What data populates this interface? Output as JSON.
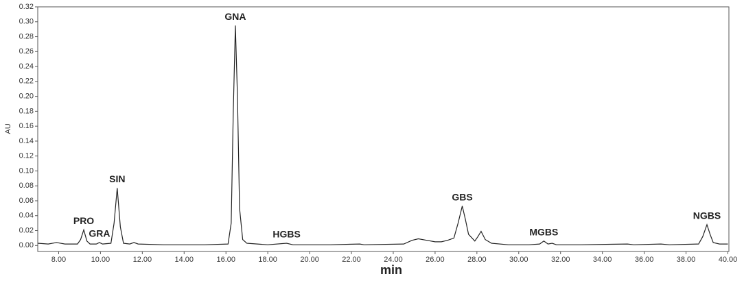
{
  "chart_data": {
    "type": "line",
    "x_label": "min",
    "y_label": "AU",
    "color": "#222222",
    "xlim": [
      7.0,
      40.05
    ],
    "ylim": [
      -0.008,
      0.32
    ],
    "xticks": [
      {
        "value": 8,
        "label": "8.00"
      },
      {
        "value": 10,
        "label": "10.00"
      },
      {
        "value": 12,
        "label": "12.00"
      },
      {
        "value": 14,
        "label": "14.00"
      },
      {
        "value": 16,
        "label": "16.00"
      },
      {
        "value": 18,
        "label": "18.00"
      },
      {
        "value": 20,
        "label": "20.00"
      },
      {
        "value": 22,
        "label": "22.00"
      },
      {
        "value": 24,
        "label": "24.00"
      },
      {
        "value": 26,
        "label": "26.00"
      },
      {
        "value": 28,
        "label": "28.00"
      },
      {
        "value": 30,
        "label": "30.00"
      },
      {
        "value": 32,
        "label": "32.00"
      },
      {
        "value": 34,
        "label": "34.00"
      },
      {
        "value": 36,
        "label": "36.00"
      },
      {
        "value": 38,
        "label": "38.00"
      },
      {
        "value": 40,
        "label": "40.00"
      }
    ],
    "yticks": [
      {
        "value": 0,
        "label": "0.00"
      },
      {
        "value": 0.02,
        "label": "0.02"
      },
      {
        "value": 0.04,
        "label": "0.04"
      },
      {
        "value": 0.06,
        "label": "0.06"
      },
      {
        "value": 0.08,
        "label": "0.08"
      },
      {
        "value": 0.1,
        "label": "0.10"
      },
      {
        "value": 0.12,
        "label": "0.12"
      },
      {
        "value": 0.14,
        "label": "0.14"
      },
      {
        "value": 0.16,
        "label": "0.16"
      },
      {
        "value": 0.18,
        "label": "0.18"
      },
      {
        "value": 0.2,
        "label": "0.20"
      },
      {
        "value": 0.22,
        "label": "0.22"
      },
      {
        "value": 0.24,
        "label": "0.24"
      },
      {
        "value": 0.26,
        "label": "0.26"
      },
      {
        "value": 0.28,
        "label": "0.28"
      },
      {
        "value": 0.3,
        "label": "0.30"
      },
      {
        "value": 0.32,
        "label": "0.32"
      }
    ],
    "x": [
      7.0,
      7.5,
      7.9,
      8.3,
      8.9,
      9.05,
      9.2,
      9.35,
      9.5,
      9.8,
      9.95,
      10.1,
      10.5,
      10.65,
      10.8,
      10.95,
      11.1,
      11.4,
      11.6,
      11.8,
      13,
      15,
      16.1,
      16.25,
      16.35,
      16.45,
      16.55,
      16.65,
      16.8,
      17.0,
      18,
      18.9,
      19.2,
      21,
      22.4,
      22.6,
      24.5,
      24.9,
      25.2,
      25.6,
      26.0,
      26.3,
      26.6,
      26.9,
      27.1,
      27.3,
      27.45,
      27.6,
      27.9,
      28.05,
      28.2,
      28.4,
      28.7,
      29.5,
      30.5,
      31.0,
      31.2,
      31.4,
      31.6,
      31.8,
      33,
      35.2,
      35.5,
      36.8,
      37.2,
      38.6,
      38.8,
      39.0,
      39.15,
      39.3,
      39.6,
      40.0
    ],
    "values": [
      0.003,
      0.002,
      0.004,
      0.002,
      0.002,
      0.008,
      0.021,
      0.006,
      0.002,
      0.002,
      0.004,
      0.002,
      0.003,
      0.03,
      0.077,
      0.025,
      0.003,
      0.002,
      0.004,
      0.002,
      0.001,
      0.001,
      0.002,
      0.03,
      0.18,
      0.295,
      0.2,
      0.05,
      0.008,
      0.003,
      0.001,
      0.003,
      0.001,
      0.001,
      0.002,
      0.001,
      0.002,
      0.007,
      0.009,
      0.007,
      0.005,
      0.005,
      0.007,
      0.01,
      0.03,
      0.053,
      0.035,
      0.015,
      0.006,
      0.012,
      0.019,
      0.008,
      0.003,
      0.001,
      0.001,
      0.002,
      0.006,
      0.002,
      0.003,
      0.001,
      0.001,
      0.002,
      0.001,
      0.002,
      0.001,
      0.002,
      0.012,
      0.028,
      0.015,
      0.004,
      0.002,
      0.002
    ],
    "peaks": [
      {
        "label": "PRO",
        "x": 9.2,
        "y": 0.021
      },
      {
        "label": "GRA",
        "x": 9.95,
        "y": 0.004
      },
      {
        "label": "SIN",
        "x": 10.8,
        "y": 0.077
      },
      {
        "label": "GNA",
        "x": 16.45,
        "y": 0.295
      },
      {
        "label": "HGBS",
        "x": 18.9,
        "y": 0.003
      },
      {
        "label": "GBS",
        "x": 27.3,
        "y": 0.053
      },
      {
        "label": "MGBS",
        "x": 31.2,
        "y": 0.006
      },
      {
        "label": "NGBS",
        "x": 39.0,
        "y": 0.028
      }
    ]
  }
}
